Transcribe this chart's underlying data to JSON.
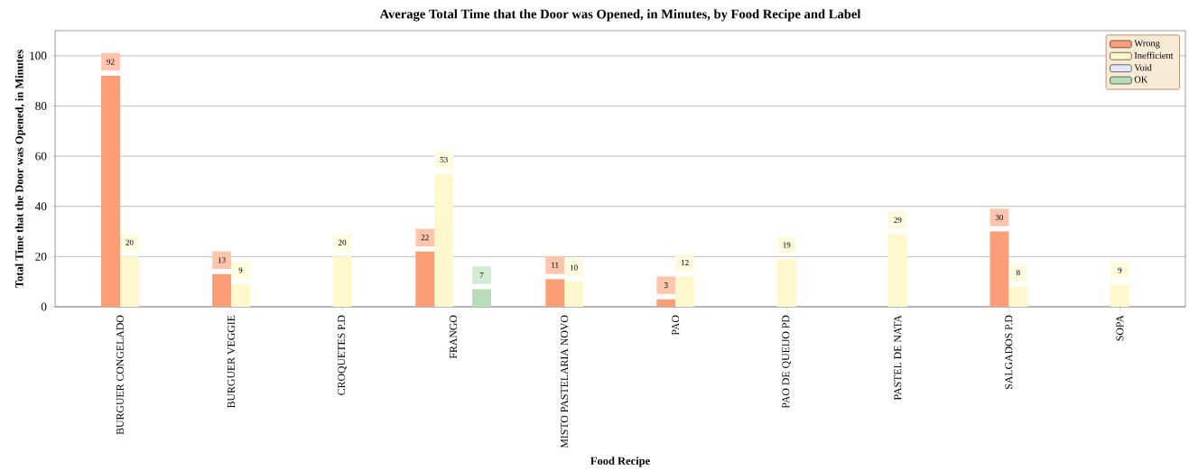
{
  "chart_data": {
    "type": "bar",
    "title": "Average Total Time that the Door was Opened, in Minutes, by Food Recipe and Label",
    "xlabel": "Food Recipe",
    "ylabel": "Total Time that the Door was Opened, in Minutes",
    "categories": [
      "BURGUER CONGELADO",
      "BURGUER VEGGIE",
      "CROQUETES P.D",
      "FRANGO",
      "MISTO PASTELARIA NOVO",
      "PAO",
      "PAO DE QUEIJO PD",
      "PASTEL DE NATA",
      "SALGADOS P.D",
      "SOPA"
    ],
    "series": [
      {
        "name": "Wrong",
        "color": "#fc9e78",
        "values": [
          92,
          13,
          null,
          22,
          11,
          3,
          null,
          null,
          30,
          null
        ]
      },
      {
        "name": "Inefficient",
        "color": "#fff8cc",
        "values": [
          20,
          9,
          20,
          53,
          10,
          12,
          19,
          29,
          8,
          9
        ]
      },
      {
        "name": "Void",
        "color": "#e6e6fa",
        "values": [
          null,
          null,
          null,
          null,
          null,
          null,
          null,
          null,
          null,
          null
        ]
      },
      {
        "name": "OK",
        "color": "#b8ddb8",
        "values": [
          null,
          null,
          null,
          7,
          null,
          null,
          null,
          null,
          null,
          null
        ]
      }
    ],
    "ylim": [
      0,
      110
    ],
    "yticks": [
      0,
      20,
      40,
      60,
      80,
      100
    ],
    "grid": "y",
    "legend": "top right",
    "data_labels": true
  }
}
